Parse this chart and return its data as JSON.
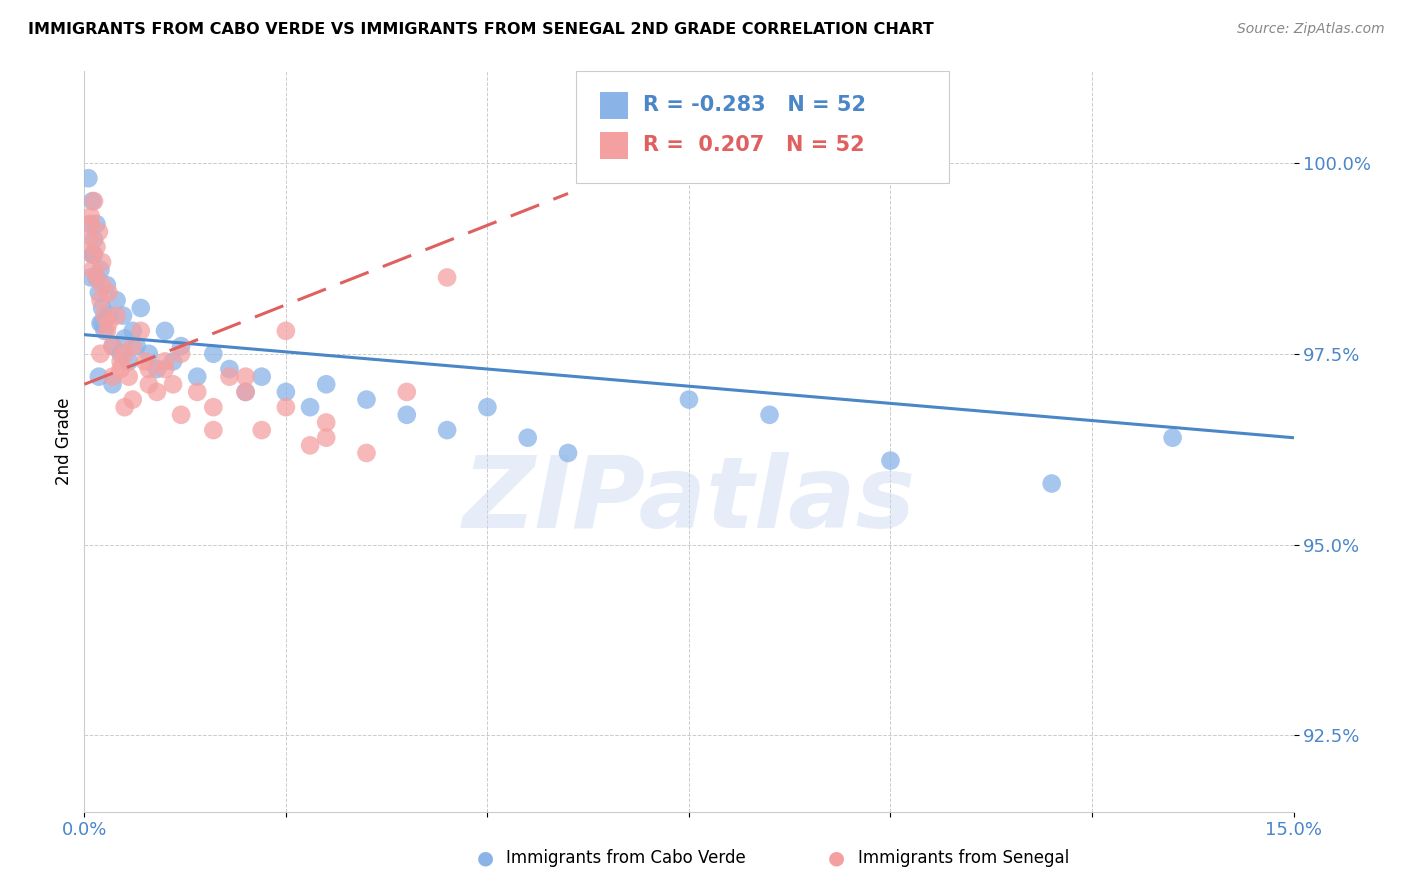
{
  "title": "IMMIGRANTS FROM CABO VERDE VS IMMIGRANTS FROM SENEGAL 2ND GRADE CORRELATION CHART",
  "source": "Source: ZipAtlas.com",
  "ylabel": "2nd Grade",
  "xlim": [
    0.0,
    15.0
  ],
  "ylim": [
    91.5,
    101.2
  ],
  "xticks": [
    0.0,
    2.5,
    5.0,
    7.5,
    10.0,
    12.5,
    15.0
  ],
  "yticks": [
    92.5,
    95.0,
    97.5,
    100.0
  ],
  "blue_color": "#8ab4e8",
  "pink_color": "#f4a0a0",
  "blue_line_color": "#4a86c8",
  "pink_line_color": "#e06060",
  "tick_color": "#4a86c8",
  "legend_R_blue": "-0.283",
  "legend_R_pink": "0.207",
  "legend_N": "52",
  "watermark": "ZIPatlas",
  "blue_trend_x0": 0.0,
  "blue_trend_y0": 97.75,
  "blue_trend_x1": 15.0,
  "blue_trend_y1": 96.4,
  "pink_trend_x0": 0.0,
  "pink_trend_y0": 97.1,
  "pink_trend_x1": 6.0,
  "pink_trend_y1": 99.6,
  "cv_x": [
    0.05,
    0.07,
    0.08,
    0.1,
    0.1,
    0.12,
    0.15,
    0.15,
    0.18,
    0.2,
    0.2,
    0.22,
    0.25,
    0.28,
    0.3,
    0.35,
    0.4,
    0.45,
    0.48,
    0.5,
    0.55,
    0.6,
    0.7,
    0.8,
    0.9,
    1.0,
    1.1,
    1.2,
    1.4,
    1.6,
    1.8,
    2.0,
    2.2,
    2.5,
    2.8,
    3.0,
    3.5,
    4.0,
    4.5,
    5.0,
    5.5,
    6.0,
    7.5,
    8.5,
    10.0,
    12.0,
    13.5,
    0.12,
    0.18,
    0.22,
    0.35,
    0.65
  ],
  "cv_y": [
    99.8,
    99.2,
    98.5,
    99.5,
    98.8,
    99.0,
    98.5,
    99.2,
    98.3,
    97.9,
    98.6,
    98.1,
    97.8,
    98.4,
    98.0,
    97.6,
    98.2,
    97.5,
    98.0,
    97.7,
    97.4,
    97.8,
    98.1,
    97.5,
    97.3,
    97.8,
    97.4,
    97.6,
    97.2,
    97.5,
    97.3,
    97.0,
    97.2,
    97.0,
    96.8,
    97.1,
    96.9,
    96.7,
    96.5,
    96.8,
    96.4,
    96.2,
    96.9,
    96.7,
    96.1,
    95.8,
    96.4,
    98.8,
    97.2,
    97.9,
    97.1,
    97.6
  ],
  "sn_x": [
    0.05,
    0.08,
    0.1,
    0.12,
    0.15,
    0.18,
    0.2,
    0.22,
    0.25,
    0.28,
    0.3,
    0.35,
    0.4,
    0.45,
    0.5,
    0.55,
    0.6,
    0.7,
    0.8,
    0.9,
    1.0,
    1.1,
    1.2,
    1.4,
    1.6,
    1.8,
    2.0,
    2.2,
    2.5,
    2.8,
    3.0,
    3.5,
    4.0,
    4.5,
    0.08,
    0.15,
    0.22,
    0.3,
    0.45,
    0.6,
    0.8,
    1.0,
    1.2,
    1.6,
    2.0,
    2.5,
    3.0,
    0.1,
    0.2,
    0.35,
    0.5,
    0.75
  ],
  "sn_y": [
    99.0,
    99.3,
    98.8,
    99.5,
    98.5,
    99.1,
    98.2,
    98.7,
    98.0,
    97.8,
    98.3,
    97.6,
    98.0,
    97.4,
    97.5,
    97.2,
    97.6,
    97.8,
    97.3,
    97.0,
    97.4,
    97.1,
    97.5,
    97.0,
    96.8,
    97.2,
    97.0,
    96.5,
    96.8,
    96.3,
    96.6,
    96.2,
    97.0,
    98.5,
    99.2,
    98.9,
    98.4,
    97.9,
    97.3,
    96.9,
    97.1,
    97.3,
    96.7,
    96.5,
    97.2,
    97.8,
    96.4,
    98.6,
    97.5,
    97.2,
    96.8,
    97.4
  ]
}
